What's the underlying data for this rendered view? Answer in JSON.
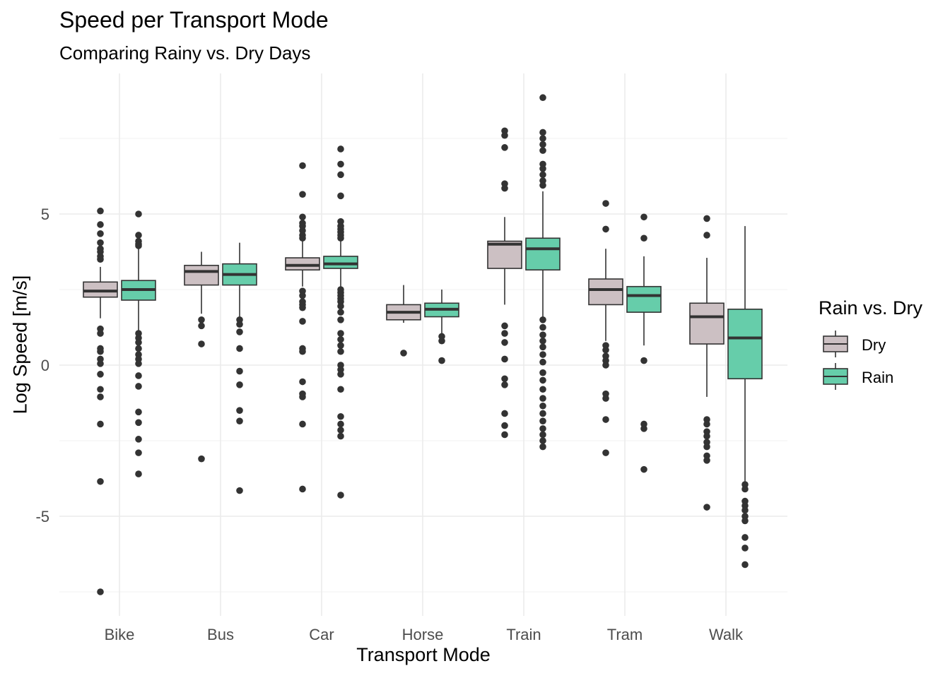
{
  "chart_data": {
    "type": "boxplot",
    "title": "Speed per Transport Mode",
    "subtitle": "Comparing Rainy vs. Dry Days",
    "xlabel": "Transport Mode",
    "ylabel": "Log Speed [m/s]",
    "ylim": [
      -7.8,
      9.6
    ],
    "yticks": [
      -5,
      0,
      5
    ],
    "grid": true,
    "legend": {
      "title": "Rain vs. Dry",
      "position": "right"
    },
    "categories": [
      "Bike",
      "Bus",
      "Car",
      "Horse",
      "Train",
      "Tram",
      "Walk"
    ],
    "series": [
      {
        "name": "Dry",
        "color": "#CCC0C3",
        "boxes": [
          {
            "category": "Bike",
            "whisker_low": 1.55,
            "q1": 2.25,
            "median": 2.45,
            "q3": 2.75,
            "whisker_high": 3.25,
            "outliers": [
              5.1,
              4.65,
              4.35,
              4.05,
              3.85,
              3.75,
              3.6,
              3.5,
              1.2,
              1.05,
              0.55,
              0.45,
              0.2,
              0.05,
              -0.3,
              -0.8,
              -1.05,
              -1.95,
              -3.85,
              -7.5
            ]
          },
          {
            "category": "Bus",
            "whisker_low": 1.7,
            "q1": 2.65,
            "median": 3.1,
            "q3": 3.3,
            "whisker_high": 3.75,
            "outliers": [
              1.5,
              1.3,
              0.7,
              -3.1
            ]
          },
          {
            "category": "Car",
            "whisker_low": 2.6,
            "q1": 3.15,
            "median": 3.3,
            "q3": 3.55,
            "whisker_high": 4.1,
            "outliers": [
              6.6,
              5.65,
              4.9,
              4.7,
              4.6,
              4.45,
              4.3,
              4.2,
              2.45,
              2.3,
              2.1,
              2.0,
              1.9,
              1.45,
              0.55,
              0.45,
              -0.55,
              -0.95,
              -1.05,
              -1.95,
              -4.1
            ]
          },
          {
            "category": "Horse",
            "whisker_low": 1.4,
            "q1": 1.5,
            "median": 1.75,
            "q3": 2.0,
            "whisker_high": 2.65,
            "outliers": [
              0.4
            ]
          },
          {
            "category": "Train",
            "whisker_low": 2.0,
            "q1": 3.2,
            "median": 4.0,
            "q3": 4.1,
            "whisker_high": 4.9,
            "outliers": [
              7.75,
              7.6,
              7.2,
              6.0,
              5.85,
              1.3,
              1.05,
              0.75,
              0.2,
              -0.45,
              -0.65,
              -1.6,
              -2.0,
              -2.3
            ]
          },
          {
            "category": "Tram",
            "whisker_low": 0.8,
            "q1": 2.0,
            "median": 2.5,
            "q3": 2.85,
            "whisker_high": 3.85,
            "outliers": [
              5.35,
              4.5,
              0.65,
              0.5,
              0.3,
              0.15,
              0.0,
              -0.95,
              -1.1,
              -1.8,
              -2.9
            ]
          },
          {
            "category": "Walk",
            "whisker_low": -1.05,
            "q1": 0.7,
            "median": 1.6,
            "q3": 2.05,
            "whisker_high": 3.55,
            "outliers": [
              4.85,
              4.3,
              -1.8,
              -1.95,
              -2.2,
              -2.35,
              -2.55,
              -2.7,
              -3.0,
              -3.15,
              -4.7
            ]
          }
        ]
      },
      {
        "name": "Rain",
        "color": "#66CDAA",
        "boxes": [
          {
            "category": "Bike",
            "whisker_low": 1.15,
            "q1": 2.15,
            "median": 2.5,
            "q3": 2.8,
            "whisker_high": 3.85,
            "outliers": [
              5.0,
              4.3,
              4.1,
              4.0,
              3.95,
              1.05,
              0.9,
              0.75,
              0.55,
              0.35,
              0.2,
              0.05,
              -0.35,
              -0.7,
              -1.55,
              -1.9,
              -2.45,
              -2.9,
              -3.6
            ]
          },
          {
            "category": "Bus",
            "whisker_low": 1.6,
            "q1": 2.65,
            "median": 3.0,
            "q3": 3.35,
            "whisker_high": 4.05,
            "outliers": [
              1.5,
              1.35,
              1.1,
              0.55,
              -0.2,
              -0.65,
              -1.5,
              -1.85,
              -4.15
            ]
          },
          {
            "category": "Car",
            "whisker_low": 2.6,
            "q1": 3.2,
            "median": 3.35,
            "q3": 3.6,
            "whisker_high": 4.15,
            "outliers": [
              7.15,
              6.65,
              6.3,
              5.6,
              4.75,
              4.6,
              4.5,
              4.4,
              4.3,
              4.2,
              2.5,
              2.4,
              2.3,
              2.2,
              2.1,
              1.95,
              1.75,
              1.5,
              1.05,
              0.85,
              0.65,
              0.45,
              0.0,
              -0.15,
              -0.3,
              -0.8,
              -1.7,
              -1.95,
              -2.15,
              -2.35,
              -4.3
            ]
          },
          {
            "category": "Horse",
            "whisker_low": 1.05,
            "q1": 1.6,
            "median": 1.85,
            "q3": 2.05,
            "whisker_high": 2.5,
            "outliers": [
              0.95,
              0.8,
              0.15
            ]
          },
          {
            "category": "Train",
            "whisker_low": 1.6,
            "q1": 3.15,
            "median": 3.85,
            "q3": 4.2,
            "whisker_high": 5.75,
            "outliers": [
              8.85,
              7.7,
              7.5,
              7.3,
              7.1,
              6.65,
              6.5,
              6.3,
              6.1,
              5.95,
              1.5,
              1.25,
              1.0,
              0.8,
              0.6,
              0.35,
              0.1,
              -0.25,
              -0.5,
              -0.8,
              -1.1,
              -1.35,
              -1.6,
              -1.85,
              -2.1,
              -2.3,
              -2.5,
              -2.7
            ]
          },
          {
            "category": "Tram",
            "whisker_low": 0.65,
            "q1": 1.75,
            "median": 2.3,
            "q3": 2.6,
            "whisker_high": 3.6,
            "outliers": [
              4.9,
              4.2,
              0.15,
              -1.95,
              -2.1,
              -3.45
            ]
          },
          {
            "category": "Walk",
            "whisker_low": -3.85,
            "q1": -0.45,
            "median": 0.9,
            "q3": 1.85,
            "whisker_high": 4.6,
            "outliers": [
              -3.95,
              -4.1,
              -4.5,
              -4.65,
              -4.8,
              -5.0,
              -5.15,
              -5.7,
              -6.05,
              -6.6
            ]
          }
        ]
      }
    ]
  }
}
